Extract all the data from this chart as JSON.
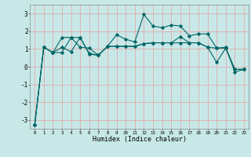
{
  "title": "",
  "xlabel": "Humidex (Indice chaleur)",
  "background_color": "#c8e8e8",
  "grid_color": "#e8a0a0",
  "line_color": "#006666",
  "x_values": [
    0,
    1,
    2,
    3,
    4,
    5,
    6,
    7,
    8,
    9,
    10,
    11,
    12,
    13,
    14,
    15,
    16,
    17,
    18,
    19,
    20,
    21,
    22,
    23
  ],
  "series": [
    [
      -3.3,
      1.1,
      0.8,
      0.8,
      1.65,
      1.65,
      0.7,
      0.65,
      1.15,
      1.15,
      1.15,
      1.15,
      1.3,
      1.35,
      1.35,
      1.35,
      1.35,
      1.35,
      1.35,
      1.1,
      1.05,
      1.05,
      -0.15,
      -0.15
    ],
    [
      -3.3,
      1.1,
      0.8,
      1.65,
      1.65,
      1.1,
      1.05,
      0.65,
      1.15,
      1.8,
      1.55,
      1.4,
      2.95,
      2.3,
      2.2,
      2.35,
      2.3,
      1.75,
      1.85,
      1.85,
      1.05,
      1.1,
      -0.3,
      -0.15
    ],
    [
      -3.3,
      1.1,
      0.8,
      1.1,
      0.85,
      1.65,
      0.75,
      0.65,
      1.15,
      1.15,
      1.15,
      1.15,
      1.3,
      1.35,
      1.35,
      1.35,
      1.7,
      1.35,
      1.35,
      1.1,
      0.25,
      1.05,
      -0.15,
      -0.15
    ]
  ],
  "ylim": [
    -3.5,
    3.5
  ],
  "xlim": [
    -0.5,
    23.5
  ],
  "yticks": [
    -3,
    -2,
    -1,
    0,
    1,
    2,
    3
  ],
  "ytick_labels": [
    "-3",
    "-2",
    "-1",
    "0",
    "1",
    "2",
    "3"
  ],
  "xticks": [
    0,
    1,
    2,
    3,
    4,
    5,
    6,
    7,
    8,
    9,
    10,
    11,
    12,
    13,
    14,
    15,
    16,
    17,
    18,
    19,
    20,
    21,
    22,
    23
  ],
  "xtick_labels": [
    "0",
    "1",
    "2",
    "3",
    "4",
    "5",
    "6",
    "7",
    "8",
    "9",
    "10",
    "11",
    "12",
    "13",
    "14",
    "15",
    "16",
    "17",
    "18",
    "19",
    "20",
    "21",
    "22",
    "23"
  ],
  "marker": "D",
  "marker_size": 1.8,
  "linewidth": 0.8,
  "xlabel_fontsize": 6.0,
  "xtick_fontsize": 4.2,
  "ytick_fontsize": 5.5
}
